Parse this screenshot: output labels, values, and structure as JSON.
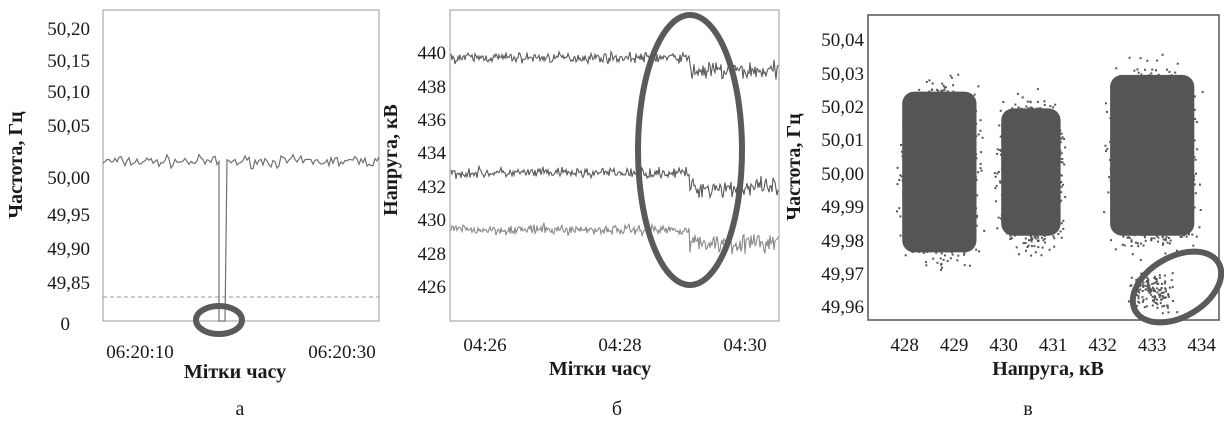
{
  "chart_data": [
    {
      "type": "line",
      "caption": "а",
      "xlabel": "Мітки часу",
      "ylabel": "Частота, Гц",
      "y_ticks": [
        "50,20",
        "50,15",
        "50,10",
        "50,05",
        "50,00",
        "49,95",
        "49,90",
        "49,85",
        "0"
      ],
      "x_ticks": [
        "06:20:10",
        "06:20:30"
      ],
      "x_range": [
        "06:20:00",
        "06:20:40"
      ],
      "threshold_value": 49.82,
      "series": [
        {
          "color": "#707070",
          "x": [
            "06:20:00",
            "06:20:19",
            "06:20:19.5",
            "06:20:20.5",
            "06:20:21",
            "06:20:40"
          ],
          "y": [
            50.015,
            50.015,
            0,
            0,
            50.015,
            50.015
          ]
        }
      ],
      "annotation": "circle around the frequency dip at the bottom"
    },
    {
      "type": "line",
      "caption": "б",
      "xlabel": "Мітки часу",
      "ylabel": "Напруга, кВ",
      "y_ticks": [
        440,
        438,
        436,
        434,
        432,
        430,
        428,
        426
      ],
      "ylim": [
        424,
        442
      ],
      "x_ticks": [
        "04:26",
        "04:28",
        "04:30"
      ],
      "xlim": [
        "04:25.5",
        "04:30.5"
      ],
      "series": [
        {
          "color": "#5a5a5a",
          "x": [
            "04:25.5",
            "04:29",
            "04:29",
            "04:30.5"
          ],
          "y": [
            439.6,
            439.6,
            438.8,
            438.8
          ]
        },
        {
          "color": "#5a5a5a",
          "x": [
            "04:25.5",
            "04:29",
            "04:29",
            "04:30.5"
          ],
          "y": [
            432.7,
            432.7,
            431.8,
            431.8
          ]
        },
        {
          "color": "#8a8a8a",
          "x": [
            "04:25.5",
            "04:29",
            "04:29",
            "04:30.5"
          ],
          "y": [
            429.3,
            429.3,
            428.5,
            428.5
          ]
        }
      ],
      "annotation": "ellipse marking the voltage step at about 04:29"
    },
    {
      "type": "scatter",
      "caption": "в",
      "xlabel": "Напруга, кВ",
      "ylabel": "Частота, Гц",
      "x_ticks": [
        428,
        429,
        430,
        431,
        432,
        433,
        434
      ],
      "xlim": [
        427.3,
        434.3
      ],
      "y_ticks": [
        "50,04",
        "50,03",
        "50,02",
        "50,01",
        "50,00",
        "49,99",
        "49,98",
        "49,97",
        "49,96"
      ],
      "ylim": [
        49.953,
        50.045
      ],
      "color": "#555555",
      "clusters": [
        {
          "x_range": [
            427.8,
            429.6
          ],
          "y_range": [
            49.97,
            50.03
          ]
        },
        {
          "x_range": [
            429.8,
            431.3
          ],
          "y_range": [
            49.975,
            50.025
          ]
        },
        {
          "x_range": [
            432.0,
            434.0
          ],
          "y_range": [
            49.975,
            50.035
          ]
        }
      ],
      "annotation": "ellipse marking low-frequency points near 433 kV"
    }
  ]
}
